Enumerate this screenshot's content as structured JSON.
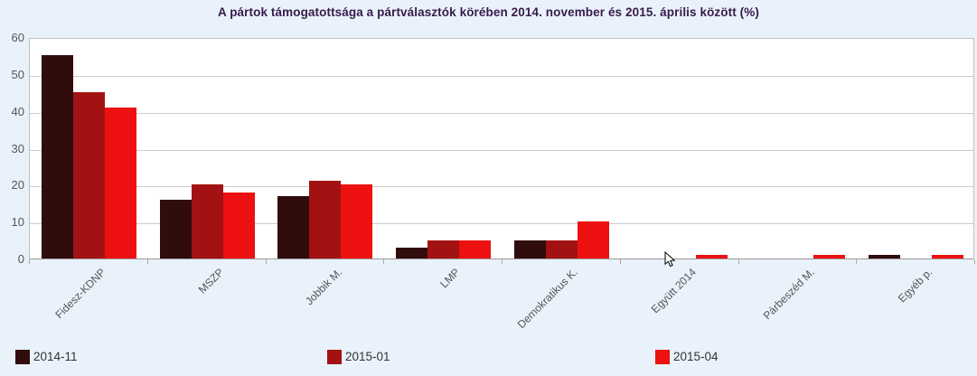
{
  "chart_data": {
    "type": "bar",
    "title": "A pártok támogatottsága a pártválasztók körében 2014. november és 2015. április között (%)",
    "categories": [
      "Fidesz-KDNP",
      "MSZP",
      "Jobbik M.",
      "LMP",
      "Demokratikus K.",
      "Együtt 2014",
      "Párbeszéd M.",
      "Egyéb p."
    ],
    "series": [
      {
        "name": "2014-11",
        "color": "#300c0c",
        "values": [
          55,
          16,
          17,
          3,
          5,
          0,
          0,
          1
        ]
      },
      {
        "name": "2015-01",
        "color": "#a31212",
        "values": [
          45,
          20,
          21,
          5,
          5,
          0,
          0,
          0
        ]
      },
      {
        "name": "2015-04",
        "color": "#ed1111",
        "values": [
          41,
          18,
          20,
          5,
          10,
          1,
          1,
          1
        ]
      }
    ],
    "xlabel": "",
    "ylabel": "",
    "ylim": [
      0,
      60
    ],
    "yticks": [
      0,
      10,
      20,
      30,
      40,
      50,
      60
    ],
    "grid": true,
    "legend_position": "bottom",
    "colors": {
      "background": "#e9f2fb",
      "plot_background": "#ffffff",
      "plot_border": "#c0c0c0",
      "gridline": "#cccccc",
      "axis_line": "#999999",
      "axis_text": "#555555",
      "title_text": "#371b4a",
      "legend_text": "#333333"
    }
  }
}
